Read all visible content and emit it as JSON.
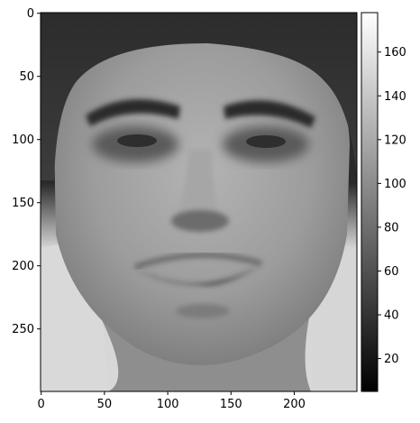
{
  "chart_data": {
    "type": "heatmap",
    "title": "",
    "xlabel": "",
    "ylabel": "",
    "image_shape": [
      300,
      250
    ],
    "colormap": "gray",
    "content": "grayscale photograph of a smiling man's face",
    "x_ticks": [
      0,
      50,
      100,
      150,
      200
    ],
    "y_ticks": [
      0,
      50,
      100,
      150,
      200,
      250
    ],
    "xlim": [
      -0.5,
      249.5
    ],
    "ylim": [
      299.5,
      -0.5
    ],
    "colorbar": {
      "range": [
        5,
        178
      ],
      "ticks": [
        20,
        40,
        60,
        80,
        100,
        120,
        140,
        160
      ]
    }
  }
}
